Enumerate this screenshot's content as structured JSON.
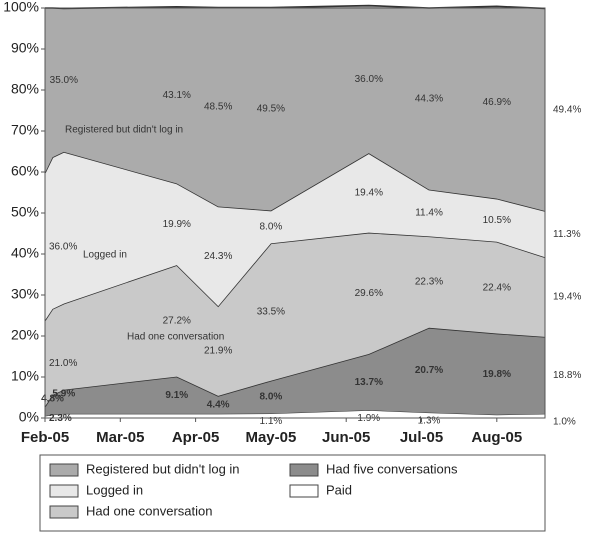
{
  "chart_data": {
    "type": "stacked-area",
    "x": [
      0,
      0.1,
      0.25,
      1.75,
      2.3,
      3.0,
      4.3,
      5.1,
      6.0,
      6.64
    ],
    "xlim": [
      0,
      6.64
    ],
    "xticks": [
      {
        "value": 0,
        "label": "Feb-05"
      },
      {
        "value": 1,
        "label": "Mar-05"
      },
      {
        "value": 2,
        "label": "Apr-05"
      },
      {
        "value": 3,
        "label": "May-05"
      },
      {
        "value": 4,
        "label": "Jun-05"
      },
      {
        "value": 5,
        "label": "Jul-05"
      },
      {
        "value": 6,
        "label": "Aug-05"
      }
    ],
    "ylim": [
      0,
      100
    ],
    "yticks": [
      {
        "value": 0,
        "label": "0%"
      },
      {
        "value": 10,
        "label": "10%"
      },
      {
        "value": 20,
        "label": "20%"
      },
      {
        "value": 30,
        "label": "30%"
      },
      {
        "value": 40,
        "label": "40%"
      },
      {
        "value": 50,
        "label": "50%"
      },
      {
        "value": 60,
        "label": "60%"
      },
      {
        "value": 70,
        "label": "70%"
      },
      {
        "value": 80,
        "label": "80%"
      },
      {
        "value": 90,
        "label": "90%"
      },
      {
        "value": 100,
        "label": "100%"
      }
    ],
    "series": [
      {
        "name": "Paid",
        "color": "#ffffff",
        "values": [
          0.5,
          0.8,
          1.0,
          1.0,
          1.0,
          1.1,
          1.9,
          1.3,
          0.8,
          1.0
        ],
        "value_labels": [
          null,
          null,
          null,
          null,
          null,
          "1.1%",
          "1.9%",
          "1.3%",
          null,
          "1.0%"
        ]
      },
      {
        "name": "Had five conversations",
        "color": "#8c8c8c",
        "values": [
          2.3,
          4.8,
          5.9,
          9.1,
          4.4,
          8.0,
          13.7,
          20.7,
          19.8,
          18.8
        ],
        "value_labels": [
          "2.3%",
          "4.8%",
          "5.9%",
          "9.1%",
          "4.4%",
          "8.0%",
          "13.7%",
          "20.7%",
          "19.8%",
          "18.8%"
        ]
      },
      {
        "name": "Had one conversation",
        "color": "#c9c9c9",
        "values": [
          21.0,
          21.0,
          21.0,
          27.2,
          21.9,
          33.5,
          29.6,
          22.3,
          22.4,
          19.4
        ],
        "value_labels": [
          "21.0%",
          null,
          null,
          "27.2%",
          "21.9%",
          "33.5%",
          "29.6%",
          "22.3%",
          "22.4%",
          "19.4%"
        ]
      },
      {
        "name": "Logged in",
        "color": "#e8e8e8",
        "values": [
          36.0,
          37.0,
          37.0,
          19.9,
          24.3,
          8.0,
          19.4,
          11.4,
          10.5,
          11.3
        ],
        "value_labels": [
          "36.0%",
          null,
          null,
          "19.9%",
          "24.3%",
          "8.0%",
          "19.4%",
          "11.4%",
          "10.5%",
          "11.3%"
        ]
      },
      {
        "name": "Registered but didn't log in",
        "color": "#ababab",
        "values": [
          40.2,
          36.4,
          35.0,
          43.1,
          48.5,
          49.5,
          36.0,
          44.3,
          46.9,
          49.4
        ],
        "value_labels": [
          null,
          null,
          "35.0%",
          "43.1%",
          "48.5%",
          "49.5%",
          "36.0%",
          "44.3%",
          "46.9%",
          "49.4%"
        ]
      }
    ]
  }
}
